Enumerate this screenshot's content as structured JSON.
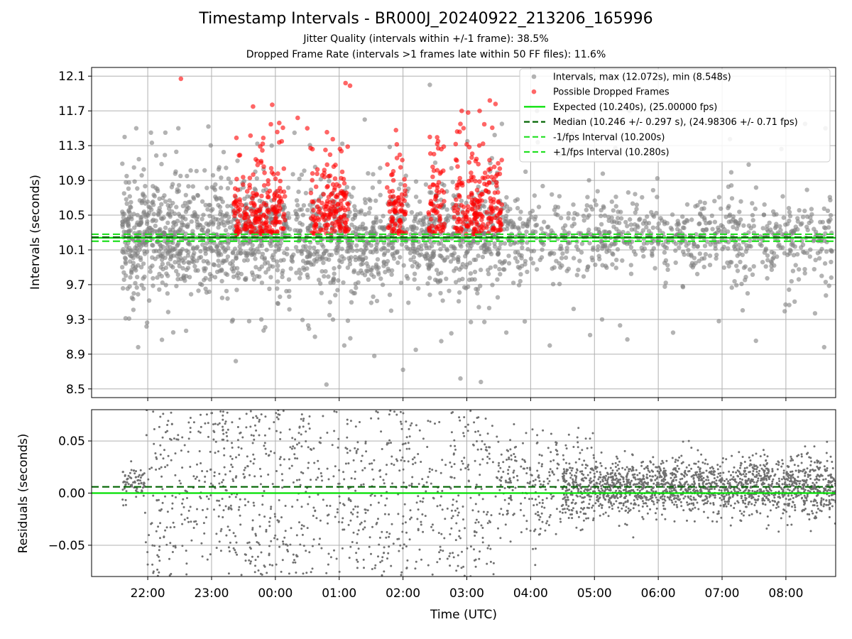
{
  "chart_data": [
    {
      "type": "scatter",
      "title": "Timestamp Intervals - BR000J_20240922_213206_165996",
      "subtitle_lines": [
        "Jitter Quality (intervals within +/-1 frame): 38.5%",
        "Dropped Frame Rate (intervals >1 frames late within 50 FF files): 11.6%"
      ],
      "xlabel": "",
      "ylabel": "Intervals (seconds)",
      "xlim_hours": [
        21.12,
        32.78
      ],
      "ylim": [
        8.4,
        12.2
      ],
      "yticks": [
        8.5,
        8.9,
        9.3,
        9.7,
        10.1,
        10.5,
        10.9,
        11.3,
        11.7,
        12.1
      ],
      "ytick_labels": [
        "8.5",
        "8.9",
        "9.3",
        "9.7",
        "10.1",
        "10.5",
        "10.9",
        "11.3",
        "11.7",
        "12.1"
      ],
      "grid": true,
      "legend_position": "top-right",
      "legend": [
        {
          "label": "Intervals, max (12.072s), min (8.548s)",
          "marker": "point",
          "color": "#808080"
        },
        {
          "label": "Possible Dropped Frames",
          "marker": "point",
          "color": "#ff0000"
        },
        {
          "label": "Expected (10.240s), (25.00000 fps)",
          "marker": "solid",
          "color": "#00e000"
        },
        {
          "label": "Median (10.246 +/- 0.297 s), (24.98306 +/- 0.71 fps)",
          "marker": "dashed",
          "color": "#006400"
        },
        {
          "label": "-1/fps Interval (10.200s)",
          "marker": "dashed",
          "color": "#22e022"
        },
        {
          "label": "+1/fps Interval (10.280s)",
          "marker": "dashed",
          "color": "#22e022"
        }
      ],
      "reference_lines": [
        {
          "name": "expected",
          "y": 10.24,
          "color": "#00e000",
          "style": "solid"
        },
        {
          "name": "median",
          "y": 10.246,
          "color": "#006400",
          "style": "dashed"
        },
        {
          "name": "minus-fps",
          "y": 10.2,
          "color": "#22e022",
          "style": "dashed"
        },
        {
          "name": "plus-fps",
          "y": 10.28,
          "color": "#22e022",
          "style": "dashed"
        }
      ],
      "series": [
        {
          "name": "Intervals",
          "color": "#808080",
          "x_range_hours": [
            21.6,
            32.72
          ],
          "approx_count": 2600,
          "y_center": 10.25,
          "y_spread": 0.3,
          "y_range": [
            8.548,
            12.072
          ],
          "points": [
            {
              "x": 21.63,
              "y": 10.75
            },
            {
              "x": 21.82,
              "y": 11.5
            },
            {
              "x": 21.85,
              "y": 8.98
            },
            {
              "x": 22.05,
              "y": 11.45
            },
            {
              "x": 22.4,
              "y": 9.15
            },
            {
              "x": 22.48,
              "y": 11.5
            },
            {
              "x": 22.95,
              "y": 11.52
            },
            {
              "x": 23.12,
              "y": 11.05
            },
            {
              "x": 23.38,
              "y": 8.82
            },
            {
              "x": 23.78,
              "y": 9.3
            },
            {
              "x": 24.62,
              "y": 9.1
            },
            {
              "x": 25.08,
              "y": 9.0
            },
            {
              "x": 24.8,
              "y": 8.55
            },
            {
              "x": 25.4,
              "y": 11.6
            },
            {
              "x": 25.55,
              "y": 8.88
            },
            {
              "x": 26.0,
              "y": 8.72
            },
            {
              "x": 26.2,
              "y": 8.95
            },
            {
              "x": 26.42,
              "y": 12.0
            },
            {
              "x": 26.6,
              "y": 9.05
            },
            {
              "x": 26.9,
              "y": 8.62
            },
            {
              "x": 27.05,
              "y": 9.95
            },
            {
              "x": 27.55,
              "y": 11.55
            },
            {
              "x": 27.22,
              "y": 8.58
            },
            {
              "x": 27.92,
              "y": 11.0
            },
            {
              "x": 28.3,
              "y": 9.0
            },
            {
              "x": 28.1,
              "y": 11.7
            },
            {
              "x": 29.55,
              "y": 11.7
            },
            {
              "x": 29.12,
              "y": 9.3
            },
            {
              "x": 30.95,
              "y": 9.28
            },
            {
              "x": 31.4,
              "y": 9.6
            },
            {
              "x": 32.3,
              "y": 11.55
            },
            {
              "x": 32.62,
              "y": 11.5
            },
            {
              "x": 32.6,
              "y": 8.98
            }
          ]
        },
        {
          "name": "Possible Dropped Frames",
          "color": "#ff0000",
          "clusters_hours": [
            [
              23.35,
              24.15
            ],
            [
              24.55,
              25.15
            ],
            [
              25.75,
              26.05
            ],
            [
              26.4,
              26.65
            ],
            [
              26.8,
              27.55
            ]
          ],
          "y_range": [
            10.2,
            12.1
          ],
          "points": [
            {
              "x": 22.52,
              "y": 12.07
            },
            {
              "x": 23.65,
              "y": 11.75
            },
            {
              "x": 23.95,
              "y": 11.77
            },
            {
              "x": 25.1,
              "y": 12.02
            },
            {
              "x": 25.17,
              "y": 11.99
            },
            {
              "x": 24.35,
              "y": 11.62
            },
            {
              "x": 24.5,
              "y": 11.5
            },
            {
              "x": 24.1,
              "y": 11.35
            },
            {
              "x": 26.42,
              "y": 11.4
            },
            {
              "x": 26.55,
              "y": 11.35
            },
            {
              "x": 26.92,
              "y": 11.7
            },
            {
              "x": 27.02,
              "y": 11.68
            },
            {
              "x": 27.2,
              "y": 11.7
            },
            {
              "x": 27.36,
              "y": 11.82
            },
            {
              "x": 27.45,
              "y": 11.78
            }
          ]
        }
      ]
    },
    {
      "type": "scatter",
      "title": "",
      "xlabel": "Time (UTC)",
      "ylabel": "Residuals (seconds)",
      "xlim_hours": [
        21.12,
        32.78
      ],
      "ylim": [
        -0.08,
        0.08
      ],
      "yticks": [
        -0.05,
        0.0,
        0.05
      ],
      "ytick_labels": [
        "−0.05",
        "0.00",
        "0.05"
      ],
      "xticks_hours": [
        22,
        23,
        24,
        25,
        26,
        27,
        28,
        29,
        30,
        31,
        32
      ],
      "xtick_labels": [
        "22:00",
        "23:00",
        "00:00",
        "01:00",
        "02:00",
        "03:00",
        "04:00",
        "05:00",
        "06:00",
        "07:00",
        "08:00"
      ],
      "grid": true,
      "reference_lines": [
        {
          "name": "expected",
          "y": 0.0,
          "color": "#00e000",
          "style": "solid"
        },
        {
          "name": "median",
          "y": 0.006,
          "color": "#006400",
          "style": "dashed"
        }
      ],
      "series": [
        {
          "name": "Residuals",
          "color": "#707070",
          "x_range_hours": [
            21.6,
            32.78
          ],
          "approx_count": 2400,
          "segments": [
            {
              "from": 21.6,
              "to": 21.95,
              "center": 0.01,
              "spread": 0.012
            },
            {
              "from": 21.95,
              "to": 27.5,
              "center": 0.0,
              "spread": 0.08
            },
            {
              "from": 27.5,
              "to": 29.0,
              "center": 0.008,
              "spread": 0.04
            },
            {
              "from": 29.0,
              "to": 32.78,
              "center": 0.006,
              "spread": 0.022
            }
          ]
        }
      ]
    }
  ]
}
